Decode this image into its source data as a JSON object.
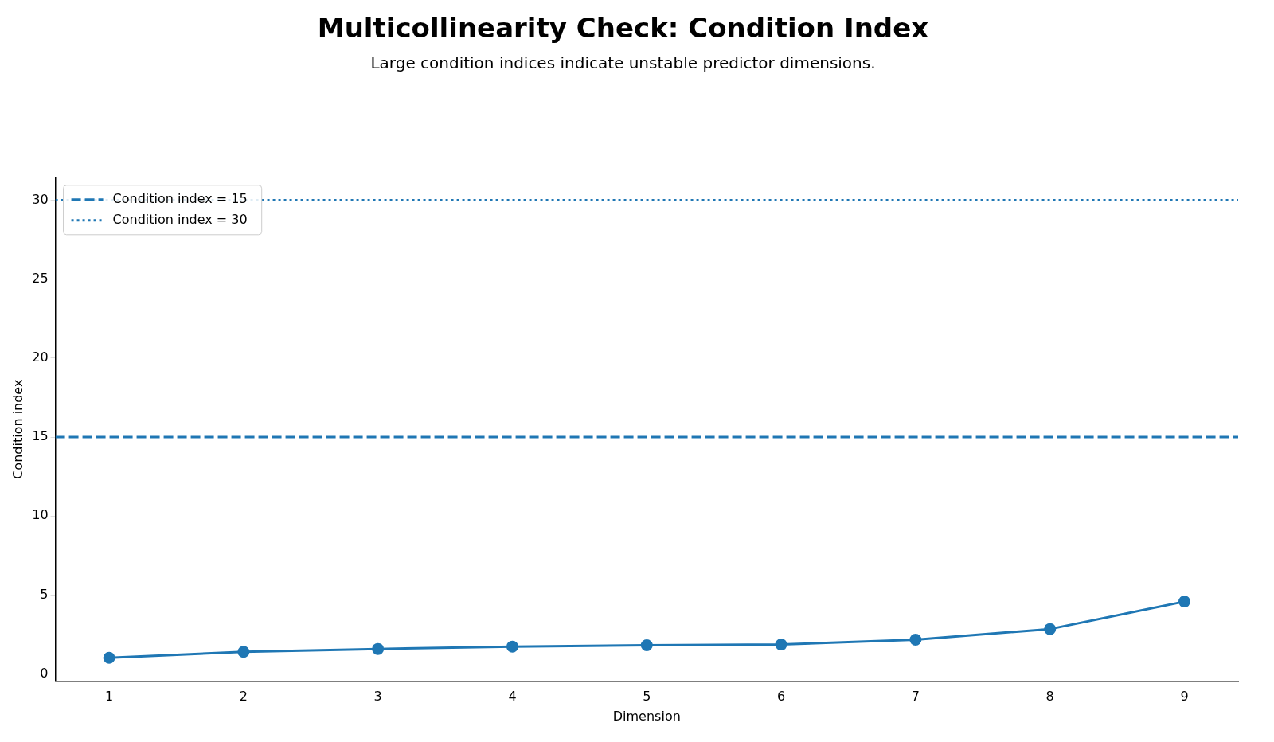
{
  "chart_data": {
    "type": "line",
    "title": "Multicollinearity Check: Condition Index",
    "subtitle": "Large condition indices indicate unstable predictor dimensions.",
    "xlabel": "Dimension",
    "ylabel": "Condition index",
    "x": [
      1,
      2,
      3,
      4,
      5,
      6,
      7,
      8,
      9
    ],
    "series": [
      {
        "color": "#1f77b4",
        "values": [
          1.03,
          1.41,
          1.59,
          1.74,
          1.82,
          1.87,
          2.18,
          2.85,
          4.59
        ]
      }
    ],
    "xlim": [
      0.6,
      9.4
    ],
    "xticks": [
      1,
      2,
      3,
      4,
      5,
      6,
      7,
      8,
      9
    ],
    "ylim": [
      -0.45,
      31.45
    ],
    "yticks": [
      0,
      5,
      10,
      15,
      20,
      25,
      30
    ],
    "ref_lines": [
      {
        "axis": "y",
        "value": 15,
        "label": "Condition index = 15",
        "color": "#1f77b4",
        "line_style": "dashed"
      },
      {
        "axis": "y",
        "value": 30,
        "label": "Condition index = 30",
        "color": "#1f77b4",
        "line_style": "dotted"
      }
    ],
    "grid": false,
    "legend": "top left",
    "marker": "circle",
    "line_style": "solid"
  }
}
